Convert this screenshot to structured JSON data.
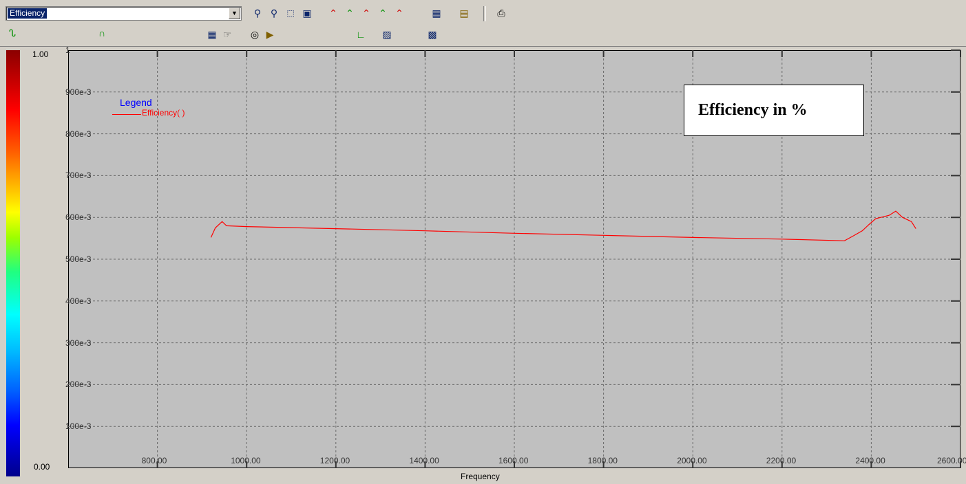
{
  "toolbar": {
    "dataset_selected": "Efficiency",
    "icons": [
      "zoom-out-icon",
      "zoom-in-icon",
      "zoom-window-icon",
      "zoom-fit-icon",
      "marker-1-icon",
      "marker-2-icon",
      "marker-3-icon",
      "marker-4-icon",
      "marker-5-icon",
      "chart-properties-icon",
      "report-icon",
      "print-icon",
      "curve-style-icon",
      "peak-marker-icon",
      "chart-grid-icon",
      "data-cursor-icon",
      "polar-icon",
      "export-icon",
      "axis-icon",
      "trace-icon",
      "table-icon"
    ]
  },
  "colorbar": {
    "max_label": "1.00",
    "min_label": "0.00"
  },
  "chart_data": {
    "type": "line",
    "xlabel": "Frequency",
    "ylabel": "",
    "xlim": [
      600,
      2600
    ],
    "ylim": [
      0,
      1
    ],
    "x_ticks": [
      800,
      1000,
      1200,
      1400,
      1600,
      1800,
      2000,
      2200,
      2400,
      2600
    ],
    "x_tick_labels": [
      "800.00",
      "1000.00",
      "1200.00",
      "1400.00",
      "1600.00",
      "1800.00",
      "2000.00",
      "2200.00",
      "2400.00",
      "2600.00"
    ],
    "y_ticks": [
      0.1,
      0.2,
      0.3,
      0.4,
      0.5,
      0.6,
      0.7,
      0.8,
      0.9,
      1.0
    ],
    "y_tick_labels": [
      "100e-3",
      "200e-3",
      "300e-3",
      "400e-3",
      "500e-3",
      "600e-3",
      "700e-3",
      "800e-3",
      "900e-3",
      "1"
    ],
    "grid": true,
    "legend": {
      "title": "Legend",
      "placement": "top-left"
    },
    "annotation": "Efficiency in %",
    "series": [
      {
        "name": "Efficiency( )",
        "color": "#ff0000",
        "x": [
          920,
          930,
          945,
          955,
          1000,
          1200,
          1400,
          1600,
          1800,
          2000,
          2200,
          2340,
          2360,
          2380,
          2395,
          2410,
          2440,
          2455,
          2470,
          2490,
          2500
        ],
        "y": [
          0.552,
          0.575,
          0.59,
          0.58,
          0.578,
          0.573,
          0.568,
          0.562,
          0.557,
          0.552,
          0.548,
          0.544,
          0.556,
          0.568,
          0.583,
          0.597,
          0.605,
          0.615,
          0.6,
          0.59,
          0.573
        ]
      }
    ]
  }
}
